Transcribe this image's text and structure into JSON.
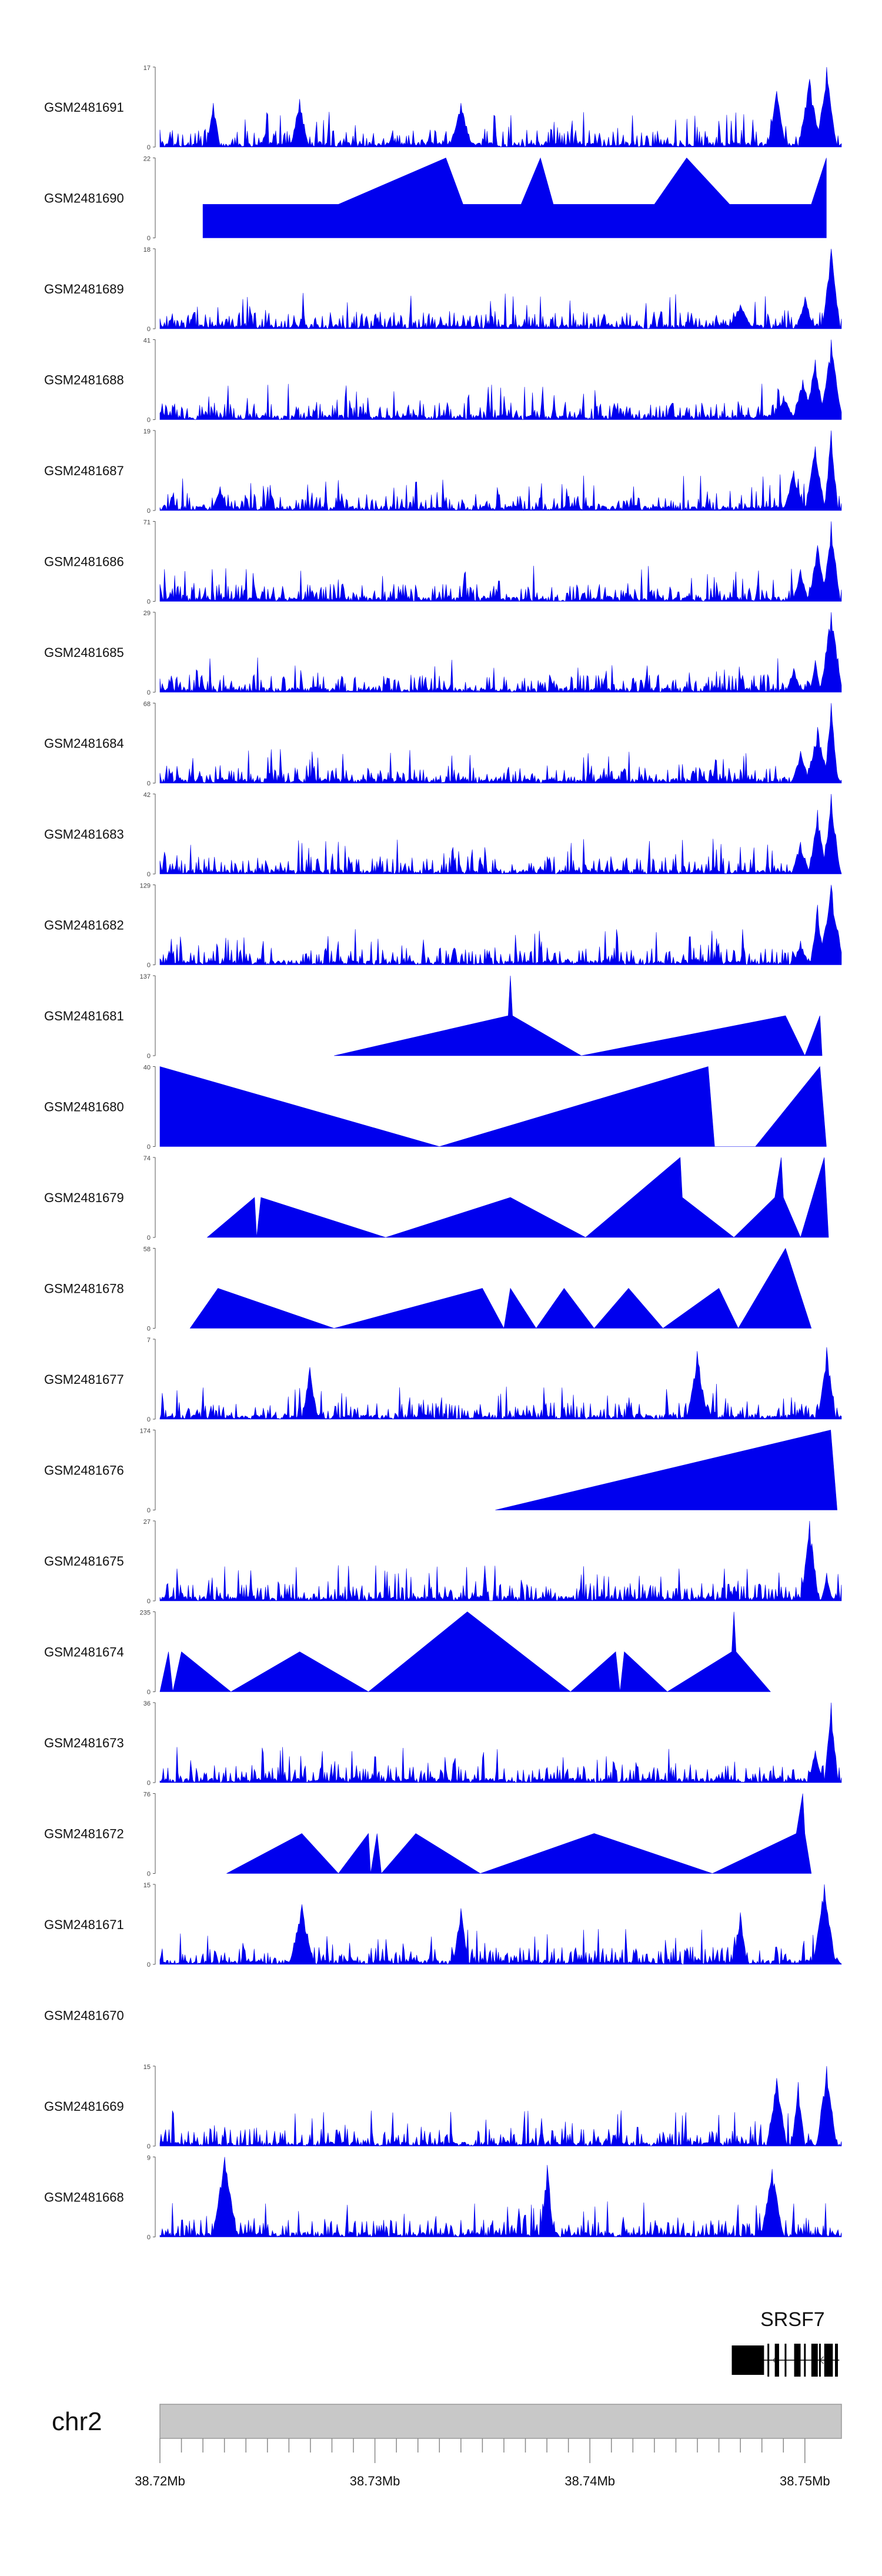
{
  "chart_data": {
    "type": "area",
    "title": "",
    "xlabel": "",
    "ylabel": "",
    "chromosome": "chr2",
    "x_range_mb": [
      38.72,
      38.7517
    ],
    "x_ticks": [
      "38.72Mb",
      "38.73Mb",
      "38.74Mb",
      "38.75Mb"
    ],
    "x_tick_values": [
      38.72,
      38.73,
      38.74,
      38.75
    ],
    "gene": {
      "name": "SRSF7",
      "start_mb": 38.7466,
      "end_mb": 38.7516,
      "exons_mb": [
        [
          38.7466,
          38.7481
        ],
        [
          38.7486,
          38.7488
        ],
        [
          38.7495,
          38.7498
        ],
        [
          38.7503,
          38.7506
        ],
        [
          38.7509,
          38.7513
        ],
        [
          38.7514,
          38.7515
        ]
      ]
    },
    "series": [
      {
        "name": "GSM2481691",
        "ymax": "17",
        "ymin": "0",
        "max_value": 17,
        "profile": "dense",
        "peaks_mb": [
          [
            38.751,
            1.0
          ],
          [
            38.7502,
            0.85
          ],
          [
            38.7487,
            0.7
          ],
          [
            38.734,
            0.55
          ],
          [
            38.7225,
            0.55
          ],
          [
            38.7265,
            0.6
          ]
        ]
      },
      {
        "name": "GSM2481690",
        "ymax": "22",
        "ymin": "0",
        "max_value": 22,
        "profile": "sparse",
        "peaks_mb": [
          [
            38.722,
            0.42
          ],
          [
            38.7238,
            0.42
          ],
          [
            38.7257,
            0.42
          ],
          [
            38.7265,
            0.42
          ],
          [
            38.7269,
            0.42
          ],
          [
            38.7272,
            0.42
          ],
          [
            38.7275,
            0.42
          ],
          [
            38.7283,
            0.42
          ],
          [
            38.7333,
            1.0
          ],
          [
            38.7341,
            0.42
          ],
          [
            38.7353,
            0.42
          ],
          [
            38.7368,
            0.42
          ],
          [
            38.7377,
            1.0
          ],
          [
            38.7383,
            0.42
          ],
          [
            38.7392,
            0.42
          ],
          [
            38.7402,
            0.42
          ],
          [
            38.741,
            0.42
          ],
          [
            38.743,
            0.42
          ],
          [
            38.7445,
            1.0
          ],
          [
            38.7465,
            0.42
          ],
          [
            38.7488,
            0.42
          ],
          [
            38.7503,
            0.42
          ],
          [
            38.751,
            1.0
          ]
        ]
      },
      {
        "name": "GSM2481689",
        "ymax": "18",
        "ymin": "0",
        "max_value": 18,
        "profile": "dense",
        "peaks_mb": [
          [
            38.7512,
            1.0
          ],
          [
            38.75,
            0.4
          ],
          [
            38.747,
            0.3
          ]
        ]
      },
      {
        "name": "GSM2481688",
        "ymax": "41",
        "ymin": "0",
        "max_value": 41,
        "profile": "dense",
        "peaks_mb": [
          [
            38.7512,
            1.0
          ],
          [
            38.7505,
            0.75
          ],
          [
            38.7499,
            0.5
          ],
          [
            38.749,
            0.3
          ]
        ]
      },
      {
        "name": "GSM2481687",
        "ymax": "19",
        "ymin": "0",
        "max_value": 19,
        "profile": "dense",
        "peaks_mb": [
          [
            38.7512,
            1.0
          ],
          [
            38.7505,
            0.8
          ],
          [
            38.7495,
            0.5
          ],
          [
            38.7228,
            0.3
          ]
        ]
      },
      {
        "name": "GSM2481686",
        "ymax": "71",
        "ymin": "0",
        "max_value": 71,
        "profile": "dense",
        "peaks_mb": [
          [
            38.7512,
            1.0
          ],
          [
            38.7506,
            0.7
          ],
          [
            38.7498,
            0.4
          ]
        ]
      },
      {
        "name": "GSM2481685",
        "ymax": "29",
        "ymin": "0",
        "max_value": 29,
        "profile": "dense",
        "peaks_mb": [
          [
            38.7512,
            1.0
          ],
          [
            38.7505,
            0.4
          ],
          [
            38.7495,
            0.3
          ]
        ]
      },
      {
        "name": "GSM2481684",
        "ymax": "68",
        "ymin": "0",
        "max_value": 68,
        "profile": "dense",
        "peaks_mb": [
          [
            38.7512,
            1.0
          ],
          [
            38.7506,
            0.7
          ],
          [
            38.7498,
            0.4
          ]
        ]
      },
      {
        "name": "GSM2481683",
        "ymax": "42",
        "ymin": "0",
        "max_value": 42,
        "profile": "dense",
        "peaks_mb": [
          [
            38.7512,
            1.0
          ],
          [
            38.7506,
            0.8
          ],
          [
            38.7498,
            0.4
          ]
        ]
      },
      {
        "name": "GSM2481682",
        "ymax": "129",
        "ymin": "0",
        "max_value": 129,
        "profile": "dense",
        "peaks_mb": [
          [
            38.7512,
            1.0
          ],
          [
            38.7506,
            0.75
          ],
          [
            38.7498,
            0.3
          ]
        ]
      },
      {
        "name": "GSM2481681",
        "ymax": "137",
        "ymin": "0",
        "max_value": 137,
        "profile": "sparse",
        "peaks_mb": [
          [
            38.7281,
            0.0
          ],
          [
            38.7362,
            0.5
          ],
          [
            38.7363,
            1.0
          ],
          [
            38.7364,
            0.5
          ],
          [
            38.7396,
            0.0
          ],
          [
            38.7491,
            0.5
          ],
          [
            38.75,
            0.0
          ],
          [
            38.7507,
            0.5
          ],
          [
            38.7508,
            0.0
          ]
        ]
      },
      {
        "name": "GSM2481680",
        "ymax": "40",
        "ymin": "0",
        "max_value": 40,
        "profile": "sparse",
        "peaks_mb": [
          [
            38.72,
            1.0
          ],
          [
            38.733,
            0.0
          ],
          [
            38.7455,
            1.0
          ],
          [
            38.7458,
            0.0
          ],
          [
            38.7477,
            0.0
          ],
          [
            38.7507,
            1.0
          ],
          [
            38.751,
            0.0
          ]
        ]
      },
      {
        "name": "GSM2481679",
        "ymax": "74",
        "ymin": "0",
        "max_value": 74,
        "profile": "sparse",
        "peaks_mb": [
          [
            38.7222,
            0.0
          ],
          [
            38.7244,
            0.5
          ],
          [
            38.7245,
            0.0
          ],
          [
            38.7247,
            0.5
          ],
          [
            38.7305,
            0.0
          ],
          [
            38.7363,
            0.5
          ],
          [
            38.7398,
            0.0
          ],
          [
            38.7442,
            1.0
          ],
          [
            38.7443,
            0.5
          ],
          [
            38.7467,
            0.0
          ],
          [
            38.7486,
            0.5
          ],
          [
            38.7489,
            1.0
          ],
          [
            38.749,
            0.5
          ],
          [
            38.7498,
            0.0
          ],
          [
            38.7509,
            1.0
          ],
          [
            38.7511,
            0.0
          ]
        ]
      },
      {
        "name": "GSM2481678",
        "ymax": "58",
        "ymin": "0",
        "max_value": 58,
        "profile": "sparse",
        "peaks_mb": [
          [
            38.7214,
            0.0
          ],
          [
            38.7227,
            0.5
          ],
          [
            38.7281,
            0.0
          ],
          [
            38.735,
            0.5
          ],
          [
            38.736,
            0.0
          ],
          [
            38.7363,
            0.5
          ],
          [
            38.7375,
            0.0
          ],
          [
            38.7388,
            0.5
          ],
          [
            38.7402,
            0.0
          ],
          [
            38.7418,
            0.5
          ],
          [
            38.7434,
            0.0
          ],
          [
            38.746,
            0.5
          ],
          [
            38.7469,
            0.0
          ],
          [
            38.7491,
            1.0
          ],
          [
            38.7503,
            0.0
          ]
        ]
      },
      {
        "name": "GSM2481677",
        "ymax": "7",
        "ymin": "0",
        "max_value": 7,
        "profile": "dense",
        "peaks_mb": [
          [
            38.745,
            0.85
          ],
          [
            38.751,
            0.9
          ],
          [
            38.727,
            0.65
          ]
        ]
      },
      {
        "name": "GSM2481676",
        "ymax": "174",
        "ymin": "0",
        "max_value": 174,
        "profile": "sparse",
        "peaks_mb": [
          [
            38.7356,
            0.0
          ],
          [
            38.7512,
            1.0
          ],
          [
            38.7515,
            0.0
          ]
        ]
      },
      {
        "name": "GSM2481675",
        "ymax": "27",
        "ymin": "0",
        "max_value": 27,
        "profile": "dense",
        "peaks_mb": [
          [
            38.7502,
            1.0
          ],
          [
            38.751,
            0.35
          ]
        ]
      },
      {
        "name": "GSM2481674",
        "ymax": "235",
        "ymin": "0",
        "max_value": 235,
        "profile": "sparse",
        "peaks_mb": [
          [
            38.72,
            0.0
          ],
          [
            38.7204,
            0.5
          ],
          [
            38.7206,
            0.0
          ],
          [
            38.721,
            0.5
          ],
          [
            38.7233,
            0.0
          ],
          [
            38.7265,
            0.5
          ],
          [
            38.7297,
            0.0
          ],
          [
            38.7343,
            1.0
          ],
          [
            38.7391,
            0.0
          ],
          [
            38.7412,
            0.5
          ],
          [
            38.7414,
            0.0
          ],
          [
            38.7416,
            0.5
          ],
          [
            38.7436,
            0.0
          ],
          [
            38.7466,
            0.5
          ],
          [
            38.7467,
            1.0
          ],
          [
            38.7468,
            0.5
          ],
          [
            38.7484,
            0.0
          ]
        ]
      },
      {
        "name": "GSM2481673",
        "ymax": "36",
        "ymin": "0",
        "max_value": 36,
        "profile": "dense",
        "peaks_mb": [
          [
            38.7512,
            1.0
          ],
          [
            38.7505,
            0.4
          ]
        ]
      },
      {
        "name": "GSM2481672",
        "ymax": "76",
        "ymin": "0",
        "max_value": 76,
        "profile": "sparse",
        "peaks_mb": [
          [
            38.7231,
            0.0
          ],
          [
            38.7266,
            0.5
          ],
          [
            38.7283,
            0.0
          ],
          [
            38.7297,
            0.5
          ],
          [
            38.7298,
            0.0
          ],
          [
            38.7301,
            0.5
          ],
          [
            38.7303,
            0.0
          ],
          [
            38.7319,
            0.5
          ],
          [
            38.7349,
            0.0
          ],
          [
            38.7402,
            0.5
          ],
          [
            38.7457,
            0.0
          ],
          [
            38.7496,
            0.5
          ],
          [
            38.7499,
            1.0
          ],
          [
            38.75,
            0.5
          ],
          [
            38.7503,
            0.0
          ]
        ]
      },
      {
        "name": "GSM2481671",
        "ymax": "15",
        "ymin": "0",
        "max_value": 15,
        "profile": "dense",
        "peaks_mb": [
          [
            38.7509,
            1.0
          ],
          [
            38.7266,
            0.75
          ],
          [
            38.734,
            0.7
          ],
          [
            38.747,
            0.65
          ]
        ]
      },
      {
        "name": "GSM2481670",
        "ymax": "",
        "ymin": "",
        "max_value": 0,
        "profile": "empty",
        "peaks_mb": []
      },
      {
        "name": "GSM2481669",
        "ymax": "15",
        "ymin": "0",
        "max_value": 15,
        "profile": "dense",
        "peaks_mb": [
          [
            38.751,
            1.0
          ],
          [
            38.7487,
            0.85
          ],
          [
            38.7497,
            0.8
          ]
        ]
      },
      {
        "name": "GSM2481668",
        "ymax": "9",
        "ymin": "0",
        "max_value": 9,
        "profile": "dense",
        "peaks_mb": [
          [
            38.723,
            1.0
          ],
          [
            38.738,
            0.9
          ],
          [
            38.7485,
            0.85
          ]
        ]
      }
    ]
  }
}
